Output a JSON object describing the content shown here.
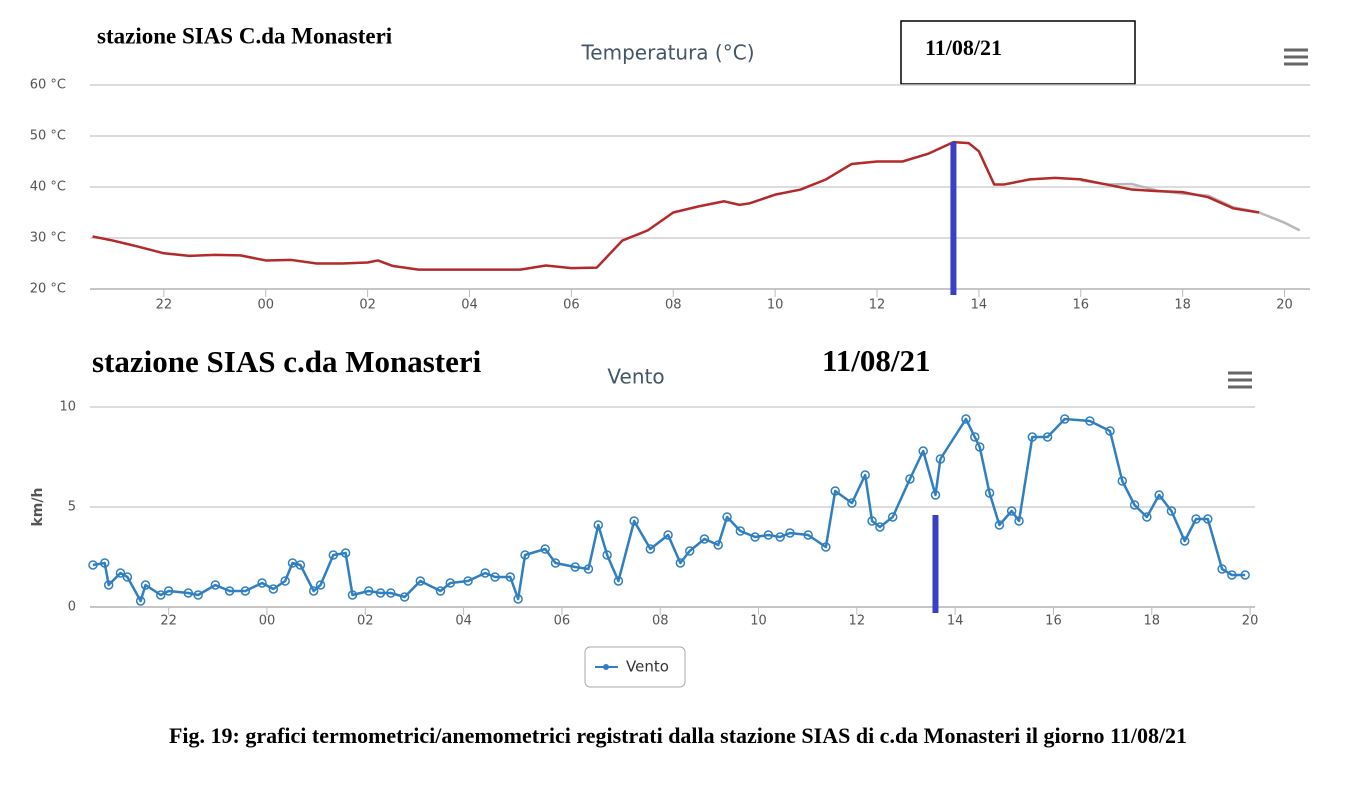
{
  "chart_data": [
    {
      "type": "line",
      "heading": "stazione SIAS C.da Monasteri",
      "date": "11/08/21",
      "title": "Temperatura (°C)",
      "xlim": [
        20.55,
        44.5
      ],
      "ylim": [
        20,
        60
      ],
      "yticks": [
        {
          "value": 20,
          "label": "20 °C"
        },
        {
          "value": 30,
          "label": "30 °C"
        },
        {
          "value": 40,
          "label": "40 °C"
        },
        {
          "value": 50,
          "label": "50 °C"
        },
        {
          "value": 60,
          "label": "60 °C"
        }
      ],
      "xticks": [
        22,
        {
          "value": 24,
          "label": "00"
        },
        {
          "value": 26,
          "label": "02"
        },
        {
          "value": 28,
          "label": "04"
        },
        {
          "value": 30,
          "label": "06"
        },
        {
          "value": 32,
          "label": "08"
        },
        {
          "value": 34,
          "label": "10"
        },
        {
          "value": 36,
          "label": "12"
        },
        {
          "value": 38,
          "label": "14"
        },
        {
          "value": 40,
          "label": "16"
        },
        {
          "value": 42,
          "label": "18"
        },
        {
          "value": 44,
          "label": "20"
        }
      ],
      "grid": true,
      "annotation_x": 37.5,
      "annotation_color": "#3b3fc4",
      "series": [
        {
          "color": "#b8b8b8",
          "x": [
            40,
            40.5,
            41,
            41.5,
            42,
            42.5,
            43,
            43.5,
            44,
            44.3
          ],
          "values": [
            41.3,
            40.5,
            40.6,
            39.3,
            38.7,
            38.3,
            36,
            35,
            33,
            31.5
          ]
        },
        {
          "color": "#b22a2a",
          "x": [
            20.6,
            21,
            21.5,
            22,
            22.5,
            23,
            23.5,
            24,
            24.5,
            25,
            25.5,
            26,
            26.2,
            26.5,
            27,
            27.5,
            28,
            28.5,
            29,
            29.5,
            30,
            30.5,
            31,
            31.5,
            32,
            32.5,
            33,
            33.3,
            33.5,
            34,
            34.5,
            35,
            35.5,
            36,
            36.5,
            37,
            37.5,
            37.8,
            38,
            38.3,
            38.5,
            39,
            39.5,
            40,
            40.5,
            41,
            41.5,
            42,
            42.5,
            43,
            43.5
          ],
          "values": [
            30.3,
            29.5,
            28.3,
            27,
            26.5,
            26.7,
            26.6,
            25.6,
            25.7,
            25,
            25,
            25.2,
            25.6,
            24.5,
            23.8,
            23.8,
            23.8,
            23.8,
            23.8,
            24.6,
            24.1,
            24.2,
            29.5,
            31.5,
            35,
            36.2,
            37.2,
            36.5,
            36.8,
            38.5,
            39.5,
            41.5,
            44.5,
            45,
            45,
            46.5,
            48.8,
            48.6,
            47,
            40.5,
            40.5,
            41.5,
            41.8,
            41.5,
            40.5,
            39.5,
            39.2,
            39,
            38,
            35.8,
            35
          ]
        }
      ]
    },
    {
      "type": "line",
      "heading": "stazione SIAS c.da Monasteri",
      "date": "11/08/21",
      "title": "Vento",
      "ylabel": "km/h",
      "xlim": [
        20.4,
        44.1
      ],
      "ylim": [
        0,
        10
      ],
      "yticks": [
        0,
        5,
        10
      ],
      "xticks": [
        22,
        {
          "value": 24,
          "label": "00"
        },
        {
          "value": 26,
          "label": "02"
        },
        {
          "value": 28,
          "label": "04"
        },
        {
          "value": 30,
          "label": "06"
        },
        {
          "value": 32,
          "label": "08"
        },
        {
          "value": 34,
          "label": "10"
        },
        {
          "value": 36,
          "label": "12"
        },
        {
          "value": 38,
          "label": "14"
        },
        {
          "value": 40,
          "label": "16"
        },
        {
          "value": 42,
          "label": "18"
        },
        {
          "value": 44,
          "label": "20"
        }
      ],
      "grid": true,
      "markers": true,
      "annotation_x": 37.6,
      "annotation_color": "#3b3fc4",
      "series": [
        {
          "name": "Vento",
          "color": "#2f7fc1",
          "x": [
            20.46,
            20.7,
            20.78,
            21.02,
            21.16,
            21.43,
            21.53,
            21.84,
            22,
            22.4,
            22.6,
            22.95,
            23.24,
            23.56,
            23.9,
            24.13,
            24.37,
            24.52,
            24.68,
            24.95,
            25.09,
            25.35,
            25.6,
            25.74,
            26.07,
            26.31,
            26.52,
            26.8,
            27.12,
            27.53,
            27.73,
            28.09,
            28.44,
            28.64,
            28.95,
            29.11,
            29.25,
            29.66,
            29.87,
            30.27,
            30.54,
            30.74,
            30.92,
            31.15,
            31.47,
            31.8,
            32.16,
            32.41,
            32.6,
            32.9,
            33.18,
            33.36,
            33.63,
            33.93,
            34.2,
            34.44,
            34.64,
            35.01,
            35.37,
            35.56,
            35.9,
            36.17,
            36.31,
            36.47,
            36.73,
            37.08,
            37.35,
            37.6,
            37.7,
            38.22,
            38.4,
            38.5,
            38.7,
            38.9,
            39.15,
            39.3,
            39.57,
            39.88,
            40.23,
            40.74,
            41.15,
            41.4,
            41.65,
            41.9,
            42.15,
            42.4,
            42.67,
            42.9,
            43.14,
            43.43,
            43.63,
            43.9
          ],
          "values": [
            2.1,
            2.2,
            1.1,
            1.7,
            1.5,
            0.3,
            1.1,
            0.6,
            0.8,
            0.7,
            0.6,
            1.1,
            0.8,
            0.8,
            1.2,
            0.9,
            1.3,
            2.2,
            2.1,
            0.8,
            1.1,
            2.6,
            2.7,
            0.6,
            0.8,
            0.7,
            0.7,
            0.5,
            1.3,
            0.8,
            1.2,
            1.3,
            1.7,
            1.5,
            1.5,
            0.4,
            2.6,
            2.9,
            2.2,
            2.0,
            1.9,
            4.1,
            2.6,
            1.3,
            4.3,
            2.9,
            3.6,
            2.2,
            2.8,
            3.4,
            3.1,
            4.5,
            3.8,
            3.5,
            3.6,
            3.5,
            3.7,
            3.6,
            3.0,
            5.8,
            5.2,
            6.6,
            4.3,
            4.0,
            4.5,
            6.4,
            7.8,
            5.6,
            7.4,
            9.4,
            8.5,
            8.0,
            5.7,
            4.1,
            4.8,
            4.3,
            8.5,
            8.5,
            9.4,
            9.3,
            8.8,
            6.3,
            5.1,
            4.5,
            5.6,
            4.8,
            3.3,
            4.4,
            4.4,
            1.9,
            1.6,
            1.6
          ]
        }
      ]
    }
  ],
  "caption": "Fig. 19: grafici termometrici/anemometrici registrati dalla stazione SIAS di c.da Monasteri il giorno 11/08/21"
}
